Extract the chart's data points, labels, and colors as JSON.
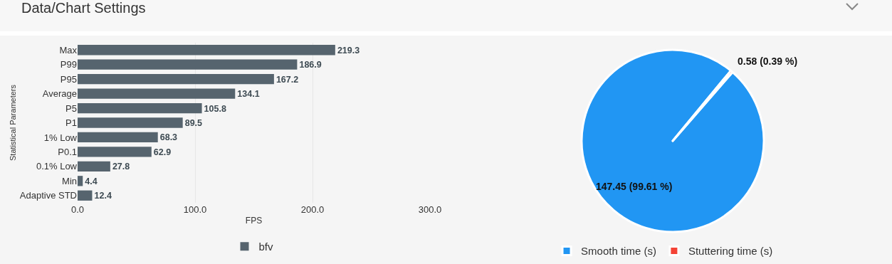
{
  "chart_data": [
    {
      "type": "bar",
      "title": "Data/Chart Settings",
      "orientation": "horizontal",
      "categories": [
        "Max",
        "P99",
        "P95",
        "Average",
        "P5",
        "P1",
        "1% Low",
        "P0.1",
        "0.1% Low",
        "Min",
        "Adaptive STD"
      ],
      "series": [
        {
          "name": "bfv",
          "color": "#56646e",
          "values": [
            219.3,
            186.9,
            167.2,
            134.1,
            105.8,
            89.5,
            68.3,
            62.9,
            27.8,
            4.4,
            12.4
          ]
        }
      ],
      "xlim": [
        0,
        300
      ],
      "xticks": [
        {
          "value": 0,
          "label": "0.0"
        },
        {
          "value": 100,
          "label": "100.0"
        },
        {
          "value": 200,
          "label": "200.0"
        },
        {
          "value": 300,
          "label": "300.0"
        }
      ],
      "xlabel": "FPS",
      "ylabel": "Statistical Parameters",
      "grid": "x",
      "legend": "bottom",
      "data_labels": true
    },
    {
      "type": "pie",
      "categories": [
        "Smooth time (s)",
        "Stuttering time (s)"
      ],
      "values": [
        147.45,
        0.58
      ],
      "colors": [
        "#2196f3",
        "#f44336"
      ],
      "value_labels": [
        "147.45 (99.61 %)",
        "0.58 (0.39 %)"
      ],
      "legend": "bottom"
    }
  ]
}
